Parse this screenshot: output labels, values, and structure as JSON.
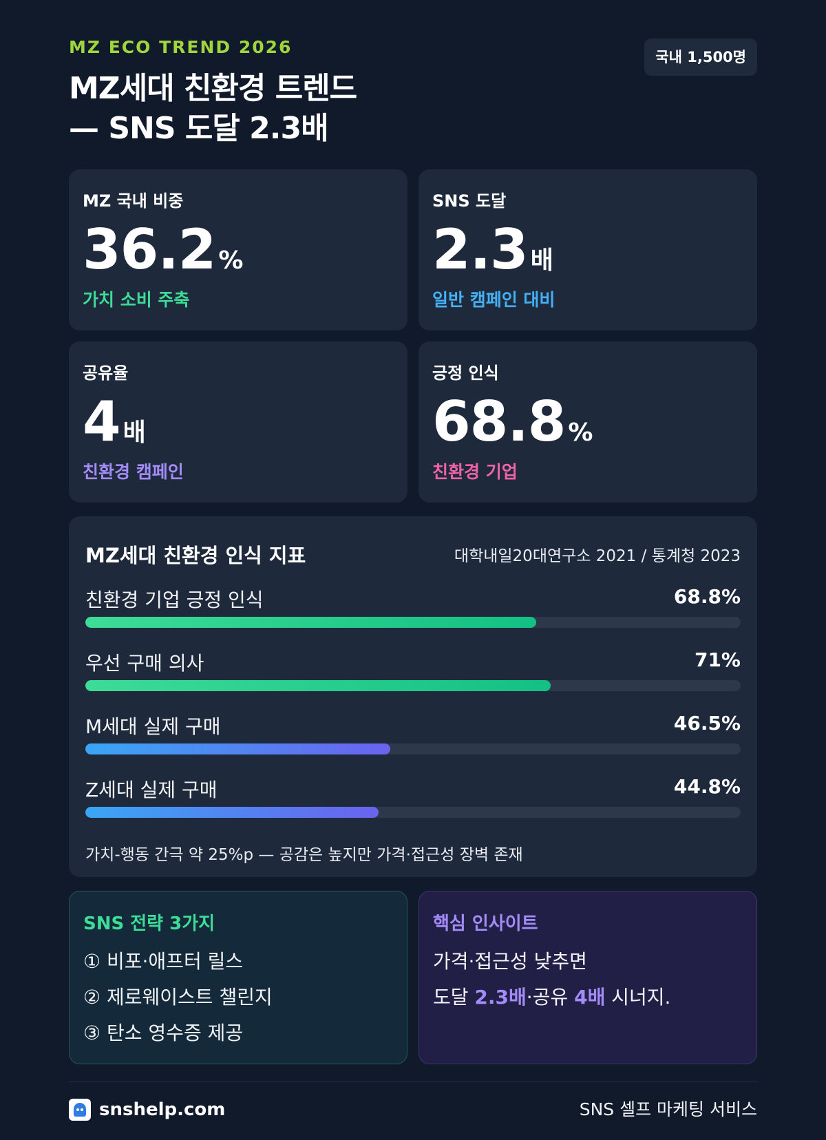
{
  "header": {
    "eyebrow": "MZ ECO TREND 2026",
    "title_line1": "MZ세대 친환경 트렌드",
    "title_line2": "— SNS 도달 2.3배",
    "sample_badge": "국내 1,500명"
  },
  "stats": [
    {
      "label": "MZ 국내 비중",
      "number": "36.2",
      "unit": "%",
      "sub": "가치 소비 주축",
      "accent": "#3ddc97"
    },
    {
      "label": "SNS 도달",
      "number": "2.3",
      "unit": "배",
      "sub": "일반 캠페인 대비",
      "accent": "#45b1f5"
    },
    {
      "label": "공유율",
      "number": "4",
      "unit": "배",
      "sub": "친환경 캠페인",
      "accent": "#a48cf8"
    },
    {
      "label": "긍정 인식",
      "number": "68.8",
      "unit": "%",
      "sub": "친환경 기업",
      "accent": "#f063a9"
    }
  ],
  "indicators": {
    "title": "MZ세대 친환경 인식 지표",
    "source": "대학내일20대연구소 2021 / 통계청 2023",
    "items": [
      {
        "label": "친환경 기업 긍정 인식",
        "value_text": "68.8%",
        "value": 68.8,
        "color": "green"
      },
      {
        "label": "우선 구매 의사",
        "value_text": "71%",
        "value": 71,
        "color": "green"
      },
      {
        "label": "M세대 실제 구매",
        "value_text": "46.5%",
        "value": 46.5,
        "color": "blue"
      },
      {
        "label": "Z세대 실제 구매",
        "value_text": "44.8%",
        "value": 44.8,
        "color": "blue"
      }
    ],
    "note": "가치-행동 간극 약 25%p — 공감은 높지만 가격·접근성 장벽 존재"
  },
  "strategy": {
    "title": "SNS 전략 3가지",
    "items": [
      "① 비포·애프터 릴스",
      "② 제로웨이스트 챌린지",
      "③ 탄소 영수증 제공"
    ]
  },
  "insight": {
    "title": "핵심 인사이트",
    "line1": "가격·접근성 낮추면",
    "line2_prefix": "도달 ",
    "line2_hl1": "2.3배",
    "line2_mid": "·공유 ",
    "line2_hl2": "4배",
    "line2_suffix": " 시너지."
  },
  "footer": {
    "brand": "snshelp.com",
    "service": "SNS 셀프 마케팅 서비스",
    "logo_icon": "mascot-logo-icon"
  },
  "colors": {
    "background": "#111a2b",
    "card": "#1e2a3c",
    "eyebrow": "#9fd63c",
    "strategy_title": "#3ddc97",
    "insight_title": "#a48cf8"
  }
}
